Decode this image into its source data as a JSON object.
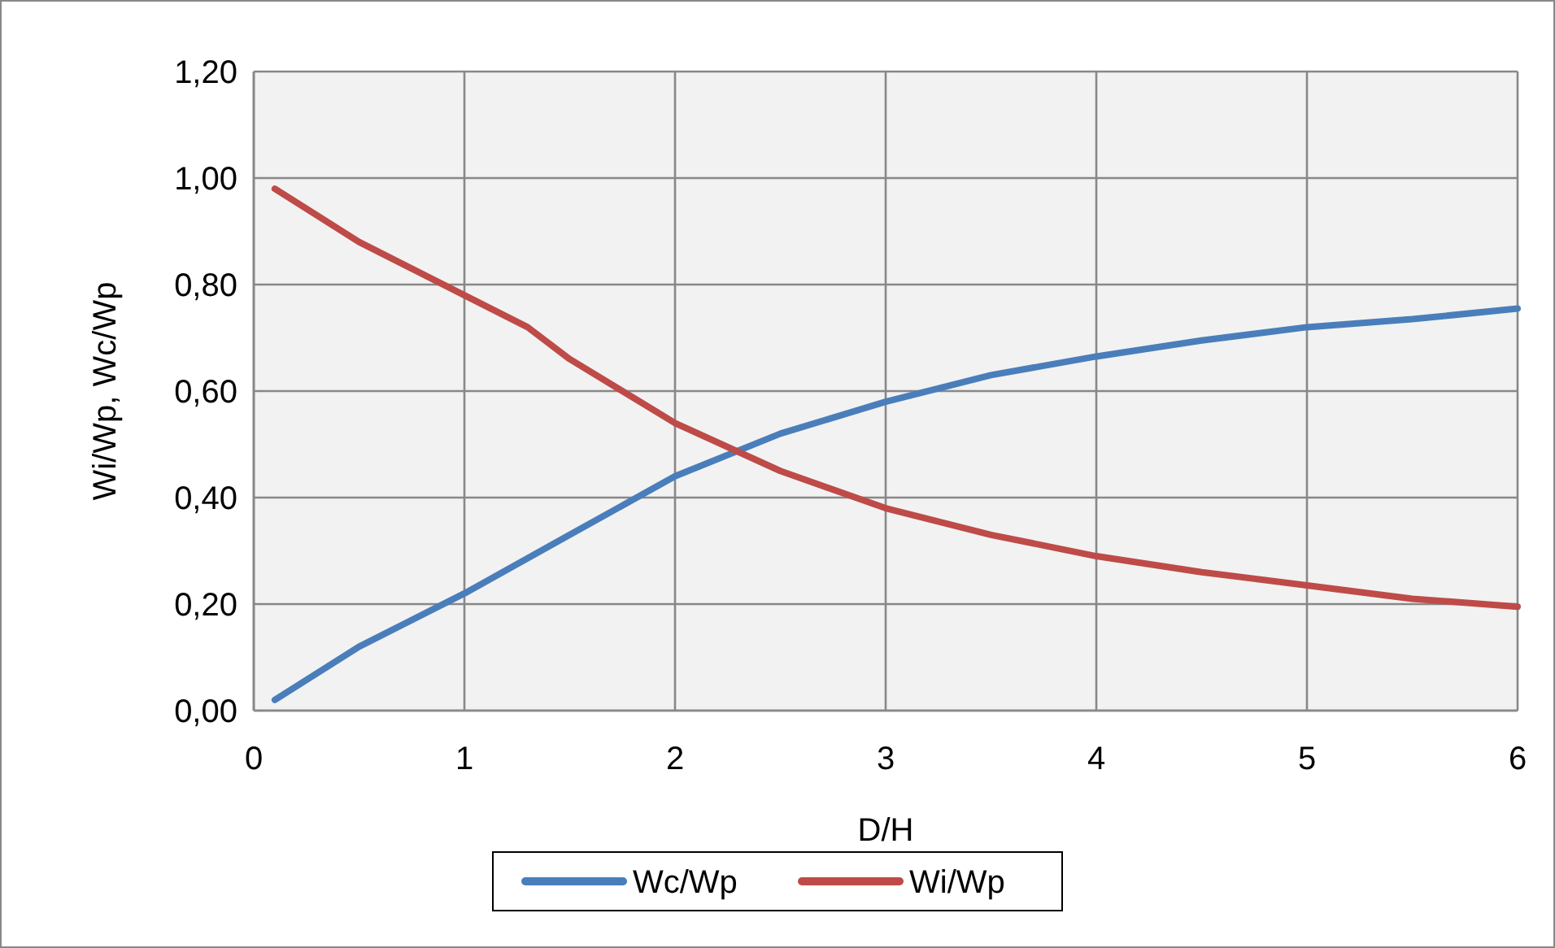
{
  "chart_data": {
    "type": "line",
    "xlabel": "D/H",
    "ylabel": "Wi/Wp, Wc/Wp",
    "xlim": [
      0,
      6
    ],
    "xticks": [
      0,
      1,
      2,
      3,
      4,
      5,
      6
    ],
    "ylim": [
      0,
      1.2
    ],
    "yticks": [
      {
        "value": 0,
        "label": "0,00"
      },
      {
        "value": 0.2,
        "label": "0,20"
      },
      {
        "value": 0.4,
        "label": "0,40"
      },
      {
        "value": 0.6,
        "label": "0,60"
      },
      {
        "value": 0.8,
        "label": "0,80"
      },
      {
        "value": 1,
        "label": "1,00"
      },
      {
        "value": 1.2,
        "label": "1,20"
      }
    ],
    "grid": true,
    "legend": "bottom",
    "marker": "none",
    "line_style": "solid",
    "series": [
      {
        "name": "Wc/Wp",
        "color": "#4a7ebb",
        "x": [
          0.1,
          0.5,
          1,
          1.5,
          2,
          2.5,
          3,
          3.5,
          4,
          4.5,
          5,
          5.5,
          6
        ],
        "values": [
          0.02,
          0.12,
          0.22,
          0.33,
          0.44,
          0.52,
          0.58,
          0.63,
          0.665,
          0.695,
          0.72,
          0.735,
          0.755
        ]
      },
      {
        "name": "Wi/Wp",
        "color": "#be4b48",
        "x": [
          0.1,
          0.5,
          1,
          1.3,
          1.5,
          2,
          2.5,
          3,
          3.5,
          4,
          4.5,
          5,
          5.5,
          6
        ],
        "values": [
          0.98,
          0.88,
          0.78,
          0.72,
          0.66,
          0.54,
          0.45,
          0.38,
          0.33,
          0.29,
          0.26,
          0.235,
          0.21,
          0.195
        ]
      }
    ]
  }
}
